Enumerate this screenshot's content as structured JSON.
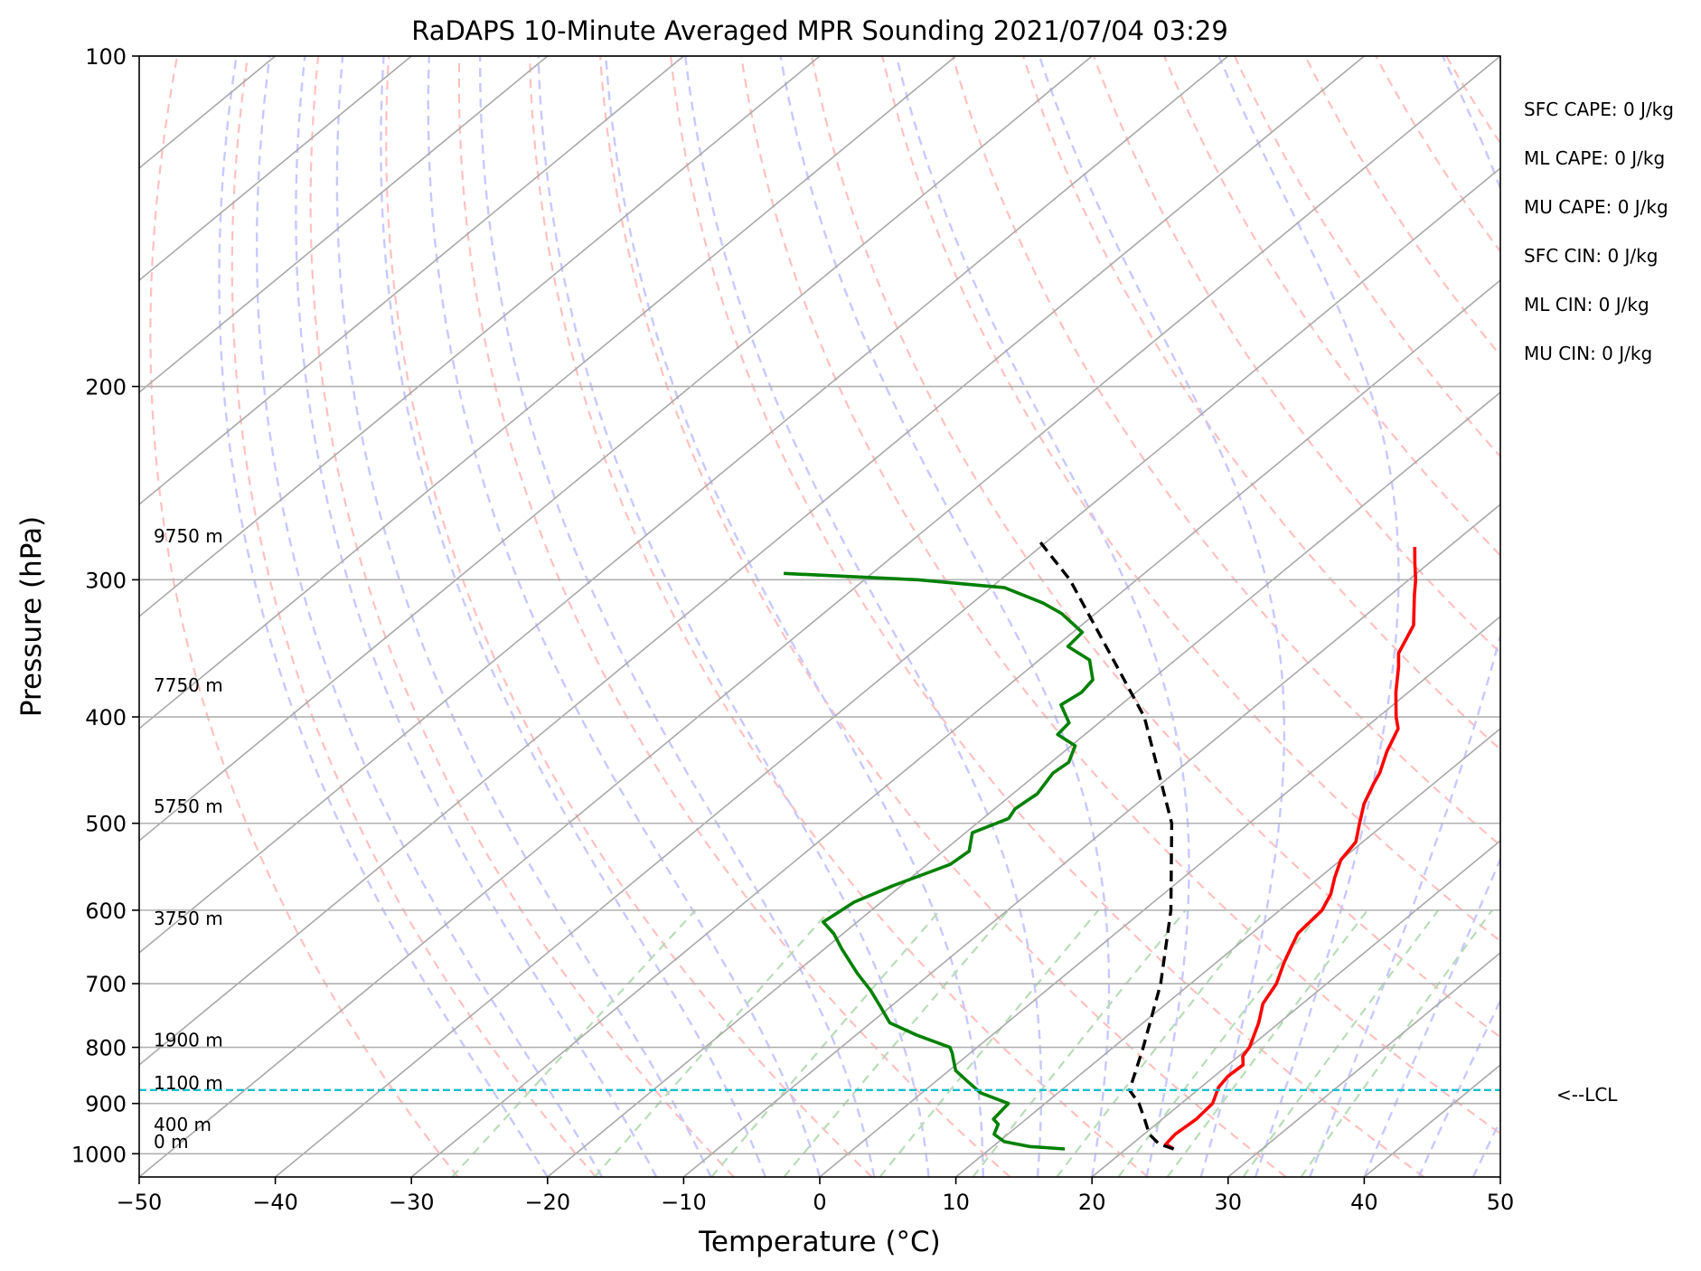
{
  "chart_data": {
    "type": "line",
    "title": "RaDAPS 10-Minute Averaged MPR Sounding 2021/07/04 03:29",
    "xlabel": "Temperature (°C)",
    "ylabel": "Pressure (hPa)",
    "xlim": [
      -50,
      50
    ],
    "ylim": [
      1050,
      100
    ],
    "y_scale": "log",
    "skew_t": true,
    "grid": true,
    "x_ticks": [
      -50,
      -40,
      -30,
      -20,
      -10,
      0,
      10,
      20,
      30,
      40,
      50
    ],
    "x_tick_labels": [
      "−50",
      "−40",
      "−30",
      "−20",
      "−10",
      "0",
      "10",
      "20",
      "30",
      "40",
      "50"
    ],
    "y_ticks": [
      100,
      200,
      300,
      400,
      500,
      600,
      700,
      800,
      900,
      1000
    ],
    "y_tick_labels": [
      "100",
      "200",
      "300",
      "400",
      "500",
      "600",
      "700",
      "800",
      "900",
      "1000"
    ],
    "series": [
      {
        "role": "temperature",
        "color": "#ff0000",
        "points": [
          {
            "p": 990,
            "t": 23.5
          },
          {
            "p": 980,
            "t": 22.5
          },
          {
            "p": 960,
            "t": 22.3
          },
          {
            "p": 930,
            "t": 22.5
          },
          {
            "p": 900,
            "t": 22.3
          },
          {
            "p": 870,
            "t": 21.3
          },
          {
            "p": 850,
            "t": 21.0
          },
          {
            "p": 830,
            "t": 21.1
          },
          {
            "p": 815,
            "t": 20.3
          },
          {
            "p": 800,
            "t": 20.0
          },
          {
            "p": 760,
            "t": 18.5
          },
          {
            "p": 730,
            "t": 17.1
          },
          {
            "p": 700,
            "t": 16.3
          },
          {
            "p": 670,
            "t": 15.0
          },
          {
            "p": 650,
            "t": 14.2
          },
          {
            "p": 630,
            "t": 13.4
          },
          {
            "p": 600,
            "t": 13.1
          },
          {
            "p": 580,
            "t": 12.3
          },
          {
            "p": 560,
            "t": 11.1
          },
          {
            "p": 540,
            "t": 10.0
          },
          {
            "p": 520,
            "t": 9.5
          },
          {
            "p": 500,
            "t": 8.1
          },
          {
            "p": 480,
            "t": 6.7
          },
          {
            "p": 460,
            "t": 5.6
          },
          {
            "p": 450,
            "t": 5.1
          },
          {
            "p": 430,
            "t": 3.7
          },
          {
            "p": 410,
            "t": 2.5
          },
          {
            "p": 400,
            "t": 1.3
          },
          {
            "p": 380,
            "t": -0.9
          },
          {
            "p": 360,
            "t": -3.0
          },
          {
            "p": 350,
            "t": -4.2
          },
          {
            "p": 330,
            "t": -5.6
          },
          {
            "p": 310,
            "t": -8.2
          },
          {
            "p": 300,
            "t": -9.5
          },
          {
            "p": 290,
            "t": -11.0
          },
          {
            "p": 280,
            "t": -12.5
          }
        ]
      },
      {
        "role": "dewpoint",
        "color": "#008000",
        "points": [
          {
            "p": 990,
            "t": 15.5
          },
          {
            "p": 985,
            "t": 12.7
          },
          {
            "p": 975,
            "t": 10.4
          },
          {
            "p": 960,
            "t": 9.0
          },
          {
            "p": 940,
            "t": 8.4
          },
          {
            "p": 930,
            "t": 7.6
          },
          {
            "p": 900,
            "t": 7.3
          },
          {
            "p": 880,
            "t": 4.3
          },
          {
            "p": 860,
            "t": 2.4
          },
          {
            "p": 840,
            "t": 0.5
          },
          {
            "p": 820,
            "t": -0.7
          },
          {
            "p": 810,
            "t": -1.3
          },
          {
            "p": 800,
            "t": -2.0
          },
          {
            "p": 780,
            "t": -5.5
          },
          {
            "p": 760,
            "t": -8.6
          },
          {
            "p": 735,
            "t": -10.7
          },
          {
            "p": 710,
            "t": -12.9
          },
          {
            "p": 685,
            "t": -15.4
          },
          {
            "p": 650,
            "t": -18.8
          },
          {
            "p": 630,
            "t": -20.7
          },
          {
            "p": 615,
            "t": -22.5
          },
          {
            "p": 605,
            "t": -22.3
          },
          {
            "p": 590,
            "t": -22.0
          },
          {
            "p": 570,
            "t": -20.6
          },
          {
            "p": 545,
            "t": -18.3
          },
          {
            "p": 530,
            "t": -18.1
          },
          {
            "p": 510,
            "t": -19.5
          },
          {
            "p": 495,
            "t": -18.1
          },
          {
            "p": 485,
            "t": -18.5
          },
          {
            "p": 470,
            "t": -18.2
          },
          {
            "p": 450,
            "t": -18.9
          },
          {
            "p": 440,
            "t": -18.7
          },
          {
            "p": 425,
            "t": -19.7
          },
          {
            "p": 415,
            "t": -22.0
          },
          {
            "p": 405,
            "t": -22.2
          },
          {
            "p": 390,
            "t": -24.4
          },
          {
            "p": 380,
            "t": -24.0
          },
          {
            "p": 370,
            "t": -24.3
          },
          {
            "p": 355,
            "t": -26.3
          },
          {
            "p": 345,
            "t": -29.1
          },
          {
            "p": 335,
            "t": -29.3
          },
          {
            "p": 322,
            "t": -32.5
          },
          {
            "p": 315,
            "t": -34.8
          },
          {
            "p": 305,
            "t": -39.0
          },
          {
            "p": 300,
            "t": -46.0
          },
          {
            "p": 296,
            "t": -56.5
          }
        ]
      },
      {
        "role": "parcel",
        "color": "#000000",
        "dashed": true,
        "points": [
          {
            "p": 990,
            "t": 23.5
          },
          {
            "p": 980,
            "t": 22.0
          },
          {
            "p": 960,
            "t": 20.4
          },
          {
            "p": 930,
            "t": 18.7
          },
          {
            "p": 900,
            "t": 16.9
          },
          {
            "p": 875,
            "t": 15.0
          },
          {
            "p": 800,
            "t": 12.2
          },
          {
            "p": 700,
            "t": 7.8
          },
          {
            "p": 600,
            "t": 2.0
          },
          {
            "p": 500,
            "t": -5.7
          },
          {
            "p": 400,
            "t": -17.2
          },
          {
            "p": 300,
            "t": -34.9
          },
          {
            "p": 275,
            "t": -41.0
          }
        ]
      }
    ],
    "lcl_pressure": 875,
    "lcl_label": "<--LCL",
    "height_labels": [
      {
        "p": 990,
        "label": "0 m"
      },
      {
        "p": 955,
        "label": "400 m"
      },
      {
        "p": 875,
        "label": "1100 m"
      },
      {
        "p": 800,
        "label": "1900 m"
      },
      {
        "p": 620,
        "label": "3750 m"
      },
      {
        "p": 490,
        "label": "5750 m"
      },
      {
        "p": 380,
        "label": "7750 m"
      },
      {
        "p": 278,
        "label": "9750 m"
      }
    ],
    "annotations": [
      "SFC CAPE: 0 J/kg",
      "ML CAPE: 0 J/kg",
      "MU CAPE: 0 J/kg",
      "SFC CIN: 0 J/kg",
      "ML CIN: 0 J/kg",
      "MU CIN: 0 J/kg"
    ],
    "reference_lines": {
      "isotherm_color": "#a9a9a9",
      "dry_adiabat_color": "#ffc0c0",
      "moist_adiabat_color": "#c8c8ff",
      "mixing_ratio_color": "#b8dcb8",
      "lcl_color": "#17becf"
    }
  }
}
